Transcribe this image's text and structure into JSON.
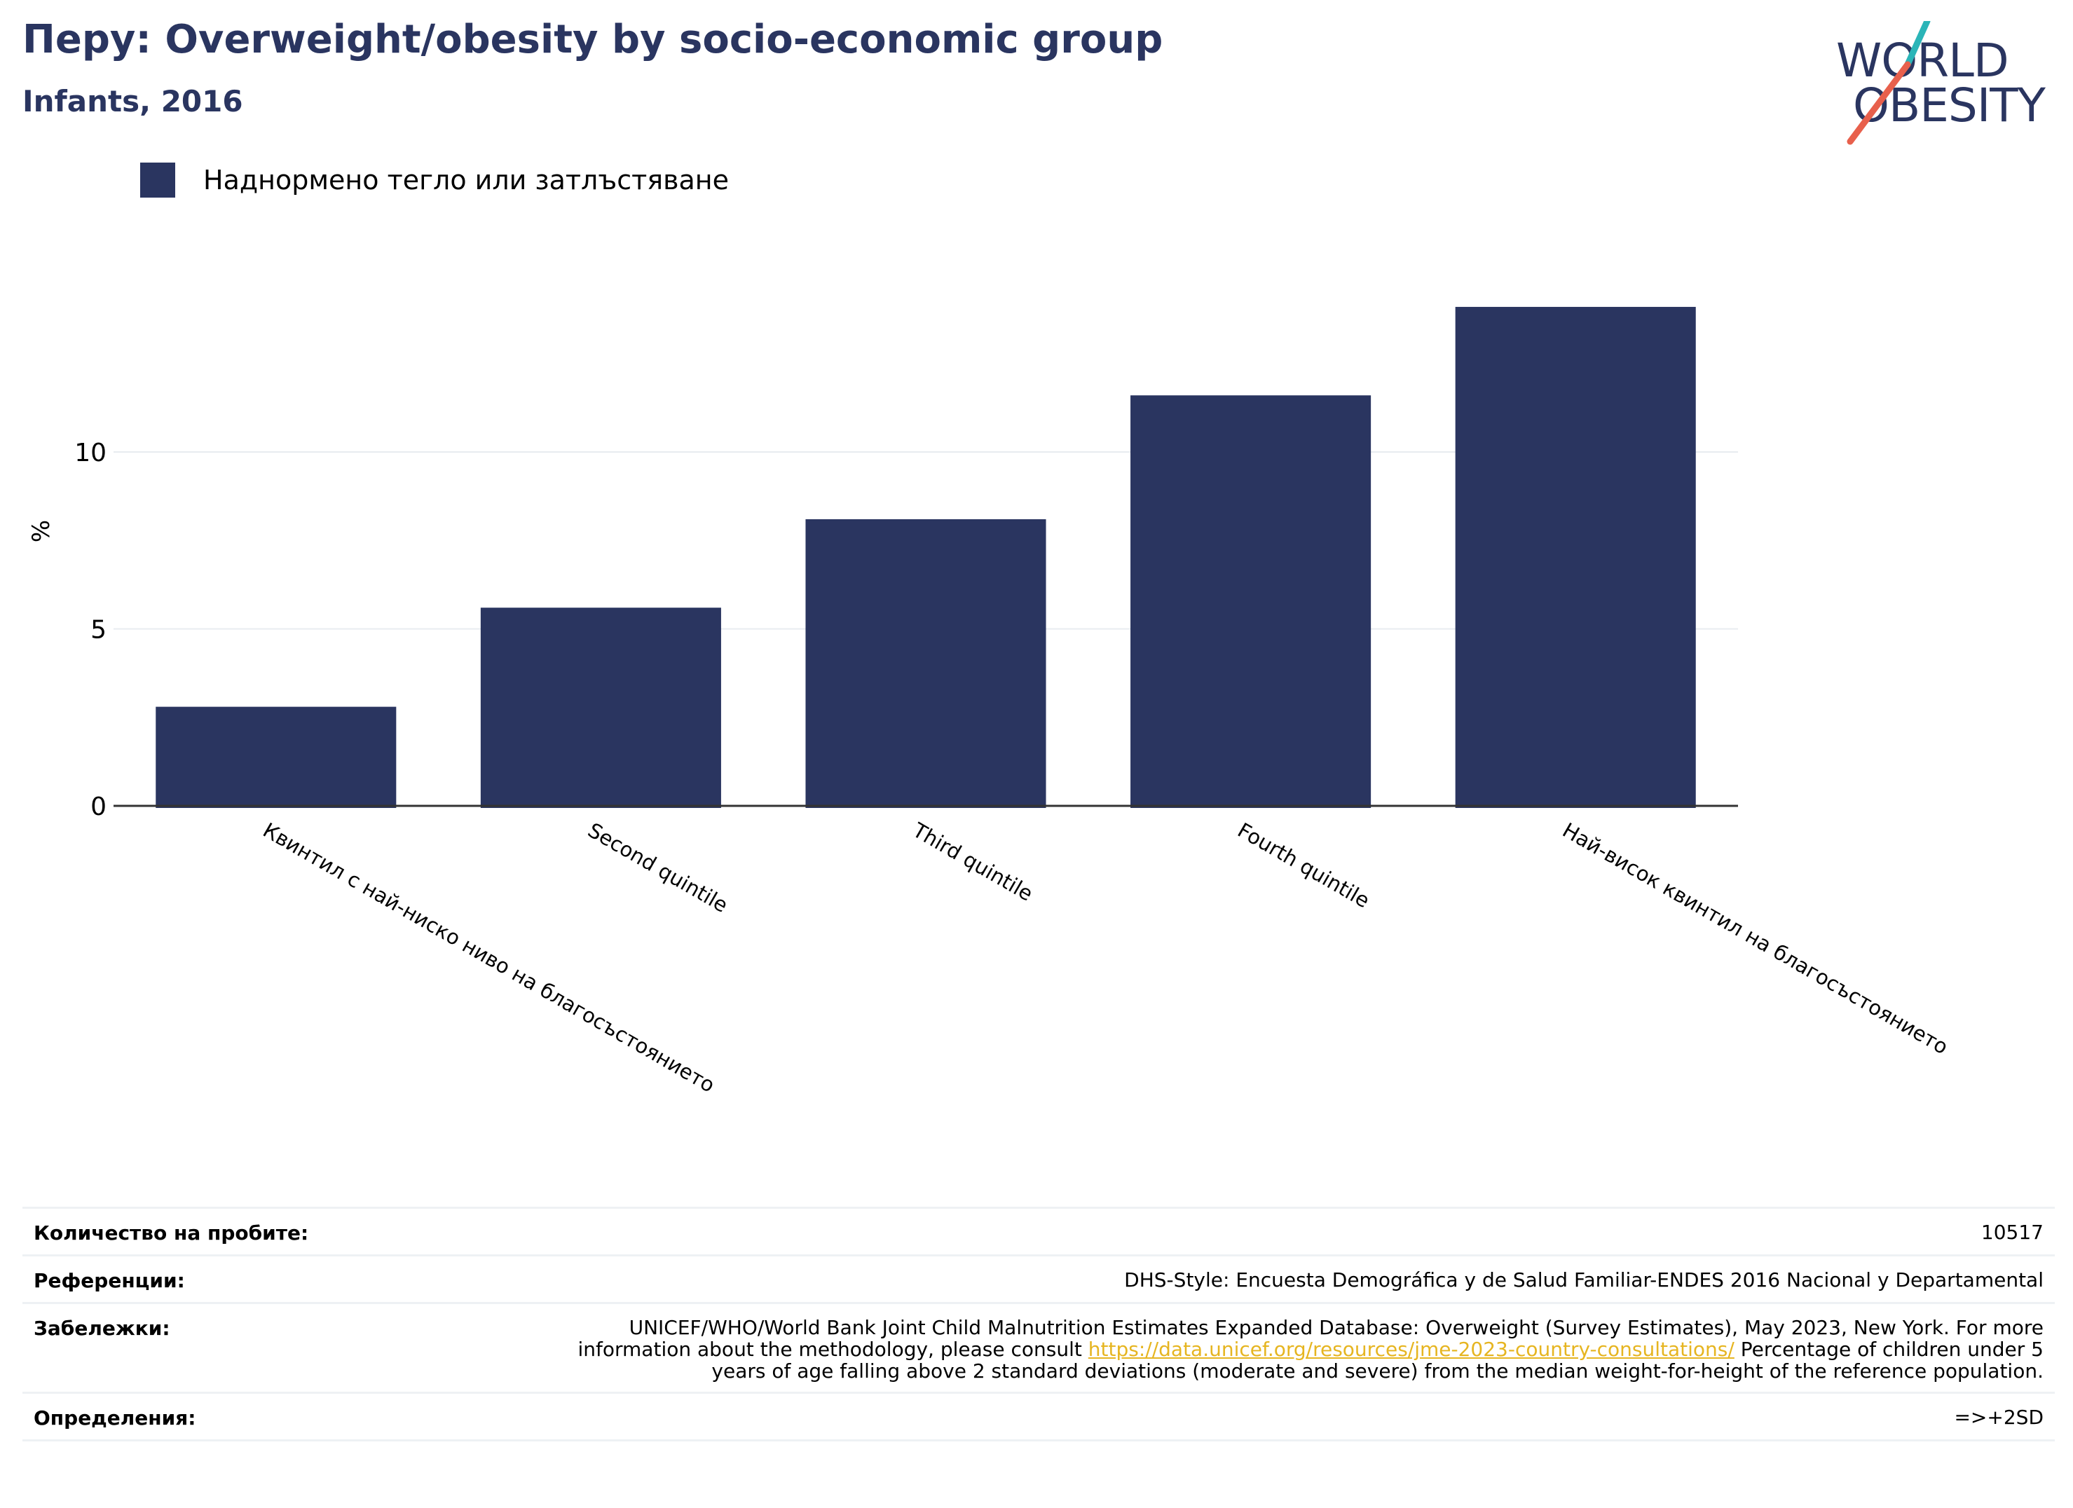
{
  "header": {
    "title": "Перу: Overweight/obesity by socio-economic group",
    "subtitle": "Infants, 2016"
  },
  "logo": {
    "line1": "WORLD",
    "line2": "OBESITY"
  },
  "colors": {
    "bar": "#2a3560",
    "title": "#2a3560",
    "link": "#e6b521",
    "logo_teal": "#2bb5b8",
    "logo_red": "#e8604c"
  },
  "chart_data": {
    "type": "bar",
    "categories": [
      "Квинтил с най-ниско ниво на благосъстоянието",
      "Second quintile",
      "Third quintile",
      "Fourth quintile",
      "Най-висок квинтил на благосъстоянието"
    ],
    "series": [
      {
        "name": "Наднормено тегло или затлъстяване",
        "values": [
          2.8,
          5.6,
          8.1,
          11.6,
          14.1
        ]
      }
    ],
    "ylabel": "%",
    "yticks": [
      0,
      5,
      10
    ],
    "ylim": [
      0,
      16
    ],
    "grid": true,
    "legend_position": "top-left"
  },
  "footer": {
    "rows": [
      {
        "key": "Количество на пробите:",
        "value": "10517"
      },
      {
        "key": "Референции:",
        "value": "DHS-Style: Encuesta Demográfica y de Salud Familiar-ENDES 2016 Nacional y Departamental"
      },
      {
        "key": "Забележки:",
        "value_before": "UNICEF/WHO/World Bank Joint Child Malnutrition Estimates Expanded Database: Overweight (Survey Estimates), May 2023, New York. For more information about the methodology, please consult ",
        "link": "https://data.unicef.org/resources/jme-2023-country-consultations/",
        "value_after": " Percentage of children under 5 years of age falling above 2 standard deviations (moderate and severe) from the median weight-for-height of the reference population."
      },
      {
        "key": "Определения:",
        "value": "=>+2SD"
      }
    ]
  }
}
